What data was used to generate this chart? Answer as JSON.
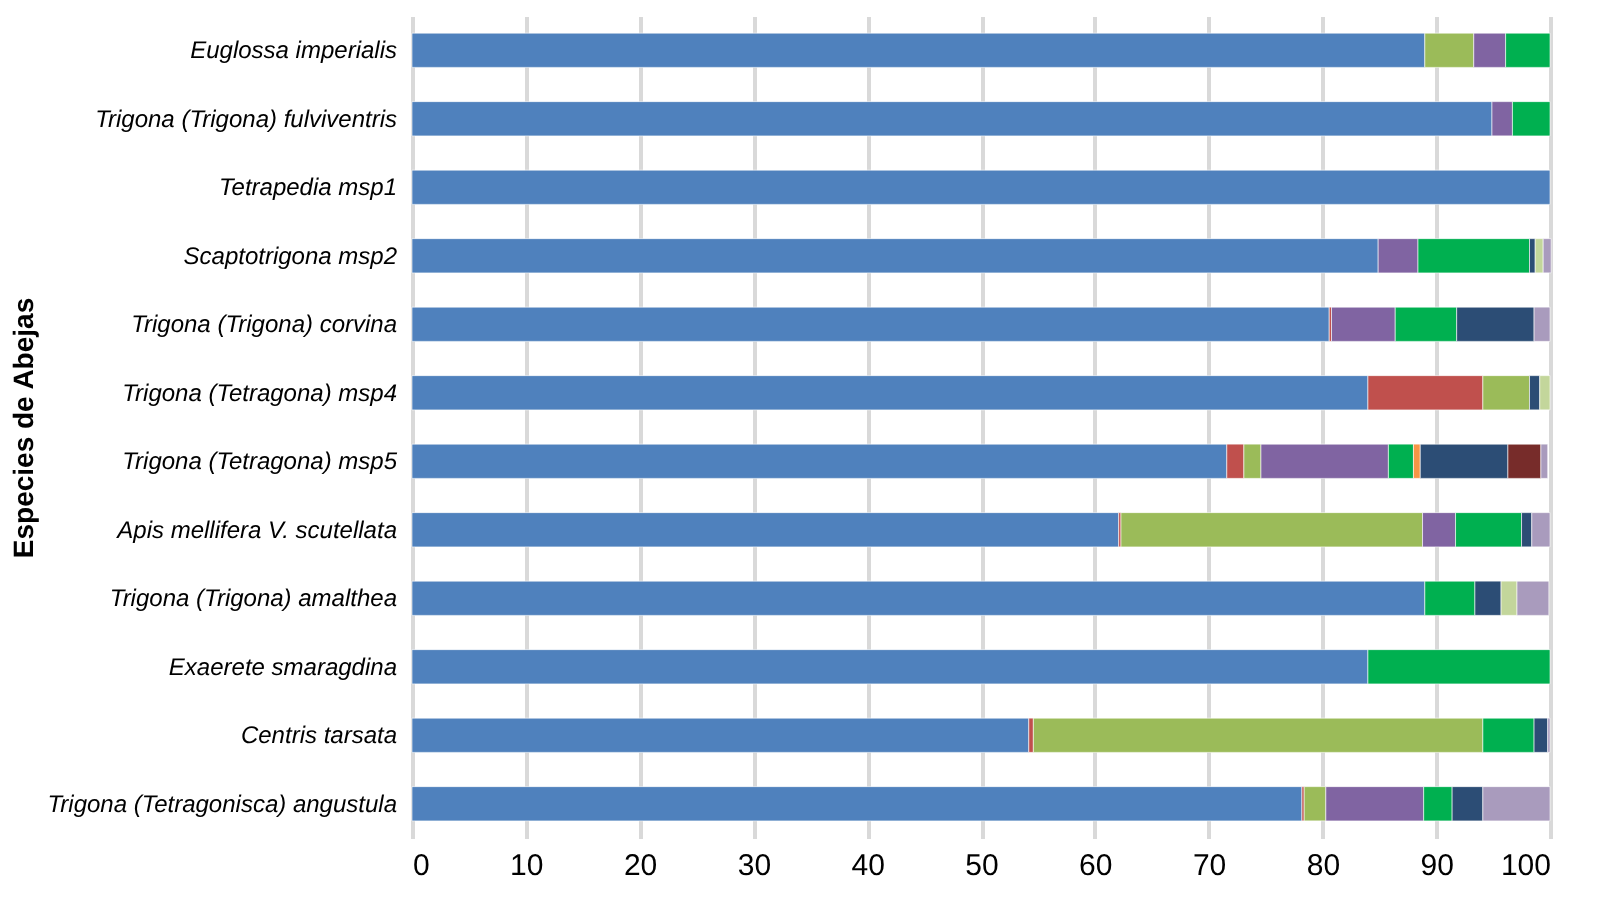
{
  "chart_data": {
    "type": "bar",
    "orientation": "horizontal",
    "stacked": true,
    "ylabel": "Especies de Abejas",
    "categories": [
      "Euglossa imperialis",
      "Trigona (Trigona) fulviventris",
      "Tetrapedia msp1",
      "Scaptotrigona msp2",
      "Trigona (Trigona) corvina",
      "Trigona (Tetragona) msp4",
      "Trigona (Tetragona) msp5",
      "Apis mellifera V. scutellata",
      "Trigona (Trigona) amalthea",
      "Exaerete smaragdina",
      "Centris tarsata",
      "Trigona (Tetragonisca) angustula"
    ],
    "series": [
      {
        "color": "#4f81bd",
        "values": [
          89.0,
          94.9,
          100,
          84.9,
          80.6,
          84.0,
          71.6,
          62.1,
          89.0,
          84.0,
          54.2,
          78.2
        ]
      },
      {
        "color": "#c0504d",
        "values": [
          null,
          null,
          null,
          null,
          0.2,
          10.1,
          1.5,
          0.2,
          null,
          null,
          0.4,
          0.2
        ]
      },
      {
        "color": "#9bbb59",
        "values": [
          4.3,
          null,
          null,
          null,
          null,
          4.1,
          1.5,
          26.5,
          null,
          null,
          39.5,
          1.9
        ]
      },
      {
        "color": "#8064a2",
        "values": [
          2.8,
          1.8,
          null,
          3.5,
          5.6,
          null,
          11.2,
          2.9,
          null,
          null,
          null,
          8.6
        ]
      },
      {
        "color": "#00b050",
        "values": [
          3.9,
          3.3,
          null,
          9.8,
          5.4,
          null,
          2.2,
          5.8,
          4.4,
          16.0,
          4.5,
          2.5
        ]
      },
      {
        "color": "#f79646",
        "values": [
          null,
          null,
          null,
          null,
          null,
          null,
          0.6,
          null,
          null,
          null,
          null,
          null
        ]
      },
      {
        "color": "#2c4d75",
        "values": [
          null,
          null,
          null,
          0.5,
          6.8,
          0.9,
          7.7,
          0.9,
          2.3,
          null,
          1.2,
          2.7
        ]
      },
      {
        "color": "#772c2a",
        "values": [
          null,
          null,
          null,
          null,
          null,
          null,
          2.9,
          null,
          null,
          null,
          null,
          null
        ]
      },
      {
        "color": "#c3d69b",
        "values": [
          null,
          null,
          null,
          0.7,
          null,
          0.9,
          null,
          null,
          1.4,
          null,
          null,
          null
        ]
      },
      {
        "color": "#a99bbd",
        "values": [
          null,
          null,
          null,
          0.7,
          1.4,
          null,
          0.6,
          1.6,
          2.8,
          null,
          0.2,
          5.9
        ]
      }
    ],
    "xlim": [
      0,
      100
    ],
    "xticks": [
      0,
      10,
      20,
      30,
      40,
      50,
      60,
      70,
      80,
      90,
      100
    ],
    "grid": "x"
  }
}
